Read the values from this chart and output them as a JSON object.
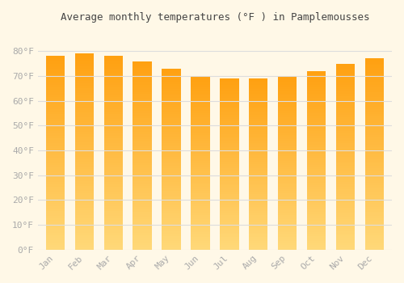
{
  "title": "Average monthly temperatures (°F ) in Pamplemousses",
  "months": [
    "Jan",
    "Feb",
    "Mar",
    "Apr",
    "May",
    "Jun",
    "Jul",
    "Aug",
    "Sep",
    "Oct",
    "Nov",
    "Dec"
  ],
  "values": [
    78,
    79,
    78,
    76,
    73,
    70,
    69,
    69,
    70,
    72,
    75,
    77
  ],
  "bar_color_top": "#FFA010",
  "bar_color_bottom": "#FFD878",
  "background_color": "#FFF8E7",
  "plot_bg_color": "#FFF8E7",
  "grid_color": "#DDDDDD",
  "tick_color": "#AAAAAA",
  "title_color": "#444444",
  "ylim": [
    0,
    88
  ],
  "yticks": [
    0,
    10,
    20,
    30,
    40,
    50,
    60,
    70,
    80
  ],
  "ytick_labels": [
    "0°F",
    "10°F",
    "20°F",
    "30°F",
    "40°F",
    "50°F",
    "60°F",
    "70°F",
    "80°F"
  ]
}
